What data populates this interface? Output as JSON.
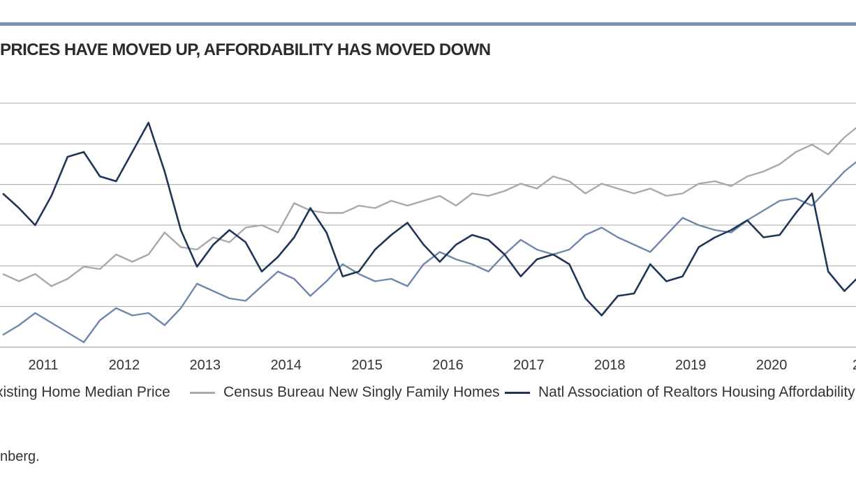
{
  "title": "PRICES HAVE MOVED UP, AFFORDABILITY HAS MOVED DOWN",
  "source": "nberg.",
  "chart_data": {
    "type": "line",
    "title": "PRICES HAVE MOVED UP, AFFORDABILITY HAS MOVED DOWN",
    "x_ticks": [
      "2011",
      "2012",
      "2013",
      "2014",
      "2015",
      "2016",
      "2017",
      "2018",
      "2019",
      "2020",
      "2"
    ],
    "grid": true,
    "gridlines": 7,
    "legend_position": "bottom",
    "series": [
      {
        "name": "xisting Home Median Price",
        "color": "#6f87ad",
        "x": [
          2010.5,
          2010.7,
          2010.9,
          2011.1,
          2011.3,
          2011.5,
          2011.7,
          2011.9,
          2012.1,
          2012.3,
          2012.5,
          2012.7,
          2012.9,
          2013.1,
          2013.3,
          2013.5,
          2013.7,
          2013.9,
          2014.1,
          2014.3,
          2014.5,
          2014.7,
          2014.9,
          2015.1,
          2015.3,
          2015.5,
          2015.7,
          2015.9,
          2016.1,
          2016.3,
          2016.5,
          2016.7,
          2016.9,
          2017.1,
          2017.3,
          2017.5,
          2017.7,
          2017.9,
          2018.1,
          2018.3,
          2018.5,
          2018.7,
          2018.9,
          2019.1,
          2019.3,
          2019.5,
          2019.7,
          2019.9,
          2020.1,
          2020.3,
          2020.5,
          2020.7,
          2020.9,
          2021.05
        ],
        "values": [
          0.05,
          0.09,
          0.14,
          0.1,
          0.06,
          0.02,
          0.11,
          0.16,
          0.13,
          0.14,
          0.09,
          0.16,
          0.26,
          0.23,
          0.2,
          0.19,
          0.25,
          0.31,
          0.28,
          0.21,
          0.27,
          0.34,
          0.3,
          0.27,
          0.28,
          0.25,
          0.34,
          0.39,
          0.36,
          0.34,
          0.31,
          0.38,
          0.44,
          0.4,
          0.38,
          0.4,
          0.46,
          0.49,
          0.45,
          0.42,
          0.39,
          0.46,
          0.53,
          0.5,
          0.48,
          0.47,
          0.52,
          0.56,
          0.6,
          0.61,
          0.58,
          0.65,
          0.72,
          0.76
        ]
      },
      {
        "name": "Census Bureau New Singly Family Homes",
        "color": "#a9a9a9",
        "x": [
          2010.5,
          2010.7,
          2010.9,
          2011.1,
          2011.3,
          2011.5,
          2011.7,
          2011.9,
          2012.1,
          2012.3,
          2012.5,
          2012.7,
          2012.9,
          2013.1,
          2013.3,
          2013.5,
          2013.7,
          2013.9,
          2014.1,
          2014.3,
          2014.5,
          2014.7,
          2014.9,
          2015.1,
          2015.3,
          2015.5,
          2015.7,
          2015.9,
          2016.1,
          2016.3,
          2016.5,
          2016.7,
          2016.9,
          2017.1,
          2017.3,
          2017.5,
          2017.7,
          2017.9,
          2018.1,
          2018.3,
          2018.5,
          2018.7,
          2018.9,
          2019.1,
          2019.3,
          2019.5,
          2019.7,
          2019.9,
          2020.1,
          2020.3,
          2020.5,
          2020.7,
          2020.9,
          2021.05
        ],
        "values": [
          0.3,
          0.27,
          0.3,
          0.25,
          0.28,
          0.33,
          0.32,
          0.38,
          0.35,
          0.38,
          0.47,
          0.41,
          0.4,
          0.45,
          0.43,
          0.49,
          0.5,
          0.47,
          0.59,
          0.56,
          0.55,
          0.55,
          0.58,
          0.57,
          0.6,
          0.58,
          0.6,
          0.62,
          0.58,
          0.63,
          0.62,
          0.64,
          0.67,
          0.65,
          0.7,
          0.68,
          0.63,
          0.67,
          0.65,
          0.63,
          0.65,
          0.62,
          0.63,
          0.67,
          0.68,
          0.66,
          0.7,
          0.72,
          0.75,
          0.8,
          0.83,
          0.79,
          0.86,
          0.9
        ]
      },
      {
        "name": "Natl Association of Realtors Housing Affordability Ind",
        "color": "#1f3557",
        "x": [
          2010.5,
          2010.7,
          2010.9,
          2011.1,
          2011.3,
          2011.5,
          2011.7,
          2011.9,
          2012.1,
          2012.3,
          2012.5,
          2012.7,
          2012.9,
          2013.1,
          2013.3,
          2013.5,
          2013.7,
          2013.9,
          2014.1,
          2014.3,
          2014.5,
          2014.7,
          2014.9,
          2015.1,
          2015.3,
          2015.5,
          2015.7,
          2015.9,
          2016.1,
          2016.3,
          2016.5,
          2016.7,
          2016.9,
          2017.1,
          2017.3,
          2017.5,
          2017.7,
          2017.9,
          2018.1,
          2018.3,
          2018.5,
          2018.7,
          2018.9,
          2019.1,
          2019.3,
          2019.5,
          2019.7,
          2019.9,
          2020.1,
          2020.3,
          2020.5,
          2020.7,
          2020.9,
          2021.05
        ],
        "values": [
          0.63,
          0.57,
          0.5,
          0.62,
          0.78,
          0.8,
          0.7,
          0.68,
          0.8,
          0.92,
          0.72,
          0.48,
          0.33,
          0.42,
          0.48,
          0.43,
          0.31,
          0.37,
          0.45,
          0.57,
          0.47,
          0.29,
          0.31,
          0.4,
          0.46,
          0.51,
          0.42,
          0.35,
          0.42,
          0.46,
          0.44,
          0.38,
          0.29,
          0.36,
          0.38,
          0.34,
          0.2,
          0.13,
          0.21,
          0.22,
          0.34,
          0.27,
          0.29,
          0.41,
          0.45,
          0.48,
          0.52,
          0.45,
          0.46,
          0.55,
          0.63,
          0.31,
          0.23,
          0.28
        ]
      }
    ]
  }
}
